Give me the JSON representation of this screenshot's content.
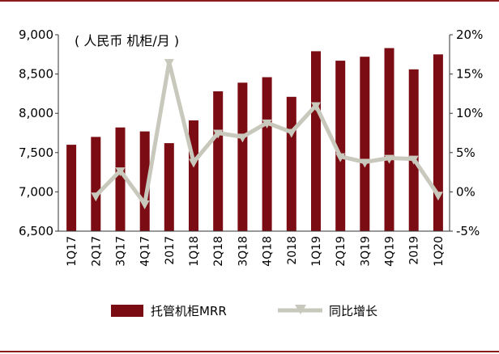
{
  "chart_data": {
    "type": "bar",
    "unit_label": "( 人民币 机柜/月 )",
    "categories": [
      "1Q17",
      "2Q17",
      "3Q17",
      "4Q17",
      "2017",
      "1Q18",
      "2Q18",
      "3Q18",
      "4Q18",
      "2018",
      "1Q19",
      "2Q19",
      "3Q19",
      "4Q19",
      "2019",
      "1Q20"
    ],
    "series": [
      {
        "name": "托管机柜MRR",
        "type": "bar",
        "axis": "left",
        "color": "#7b0c14",
        "values": [
          7600,
          7700,
          7820,
          7770,
          7620,
          7910,
          8280,
          8390,
          8460,
          8210,
          8790,
          8670,
          8720,
          8830,
          8560,
          8750
        ]
      },
      {
        "name": "同比增长",
        "type": "line",
        "axis": "right",
        "color": "#c9c8bc",
        "marker": "triangle",
        "values": [
          null,
          -0.5,
          2.7,
          -1.5,
          16.5,
          3.8,
          7.5,
          7.0,
          8.8,
          7.6,
          11.0,
          4.5,
          3.8,
          4.3,
          4.2,
          -0.4
        ]
      }
    ],
    "y_left": {
      "lim": [
        6500,
        9000
      ],
      "ticks": [
        "6,500",
        "7,000",
        "7,500",
        "8,000",
        "8,500",
        "9,000"
      ],
      "values": [
        6500,
        7000,
        7500,
        8000,
        8500,
        9000
      ]
    },
    "y_right": {
      "lim": [
        -5,
        20
      ],
      "ticks": [
        "-5%",
        "0%",
        "5%",
        "10%",
        "15%",
        "20%"
      ],
      "values": [
        -5,
        0,
        5,
        10,
        15,
        20
      ]
    },
    "grid": false,
    "legend_position": "bottom"
  }
}
